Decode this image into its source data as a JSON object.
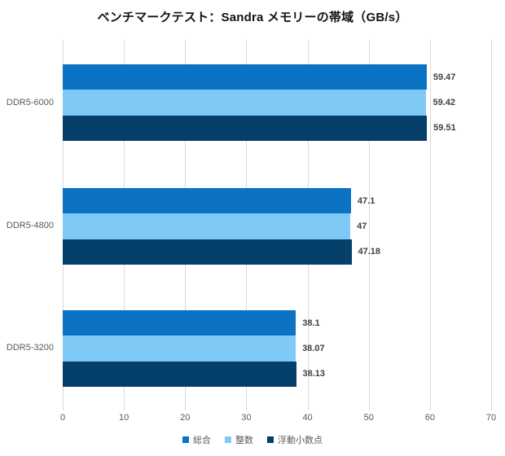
{
  "title": "ベンチマークテスト：Sandra メモリーの帯域（GB/s）",
  "chart_data": {
    "type": "bar",
    "orientation": "horizontal",
    "title": "ベンチマークテスト：Sandra メモリーの帯域（GB/s）",
    "xlabel": "",
    "ylabel": "",
    "xlim": [
      0,
      70
    ],
    "xticks": [
      "0",
      "10",
      "20",
      "30",
      "40",
      "50",
      "60",
      "70"
    ],
    "grid": true,
    "legend_position": "bottom",
    "categories": [
      "DDR5-6000",
      "DDR5-4800",
      "DDR5-3200"
    ],
    "series": [
      {
        "name": "総合",
        "color": "#0b72c4",
        "values": [
          59.47,
          47.1,
          38.1
        ]
      },
      {
        "name": "整数",
        "color": "#7fc9f7",
        "values": [
          59.42,
          47.0,
          38.07
        ]
      },
      {
        "name": "浮動小数点",
        "color": "#05406a",
        "values": [
          59.51,
          47.18,
          38.13
        ]
      }
    ],
    "groups": [
      {
        "category": "DDR5-6000",
        "bars": [
          {
            "series": "総合",
            "value": 59.47,
            "label": "59.47",
            "color": "#0b72c4"
          },
          {
            "series": "整数",
            "value": 59.42,
            "label": "59.42",
            "color": "#7fc9f7"
          },
          {
            "series": "浮動小数点",
            "value": 59.51,
            "label": "59.51",
            "color": "#05406a"
          }
        ]
      },
      {
        "category": "DDR5-4800",
        "bars": [
          {
            "series": "総合",
            "value": 47.1,
            "label": "47.1",
            "color": "#0b72c4"
          },
          {
            "series": "整数",
            "value": 47,
            "label": "47",
            "color": "#7fc9f7"
          },
          {
            "series": "浮動小数点",
            "value": 47.18,
            "label": "47.18",
            "color": "#05406a"
          }
        ]
      },
      {
        "category": "DDR5-3200",
        "bars": [
          {
            "series": "総合",
            "value": 38.1,
            "label": "38.1",
            "color": "#0b72c4"
          },
          {
            "series": "整数",
            "value": 38.07,
            "label": "38.07",
            "color": "#7fc9f7"
          },
          {
            "series": "浮動小数点",
            "value": 38.13,
            "label": "38.13",
            "color": "#05406a"
          }
        ]
      }
    ],
    "legend": [
      {
        "label": "総合",
        "color": "#0b72c4"
      },
      {
        "label": "整数",
        "color": "#7fc9f7"
      },
      {
        "label": "浮動小数点",
        "color": "#05406a"
      }
    ],
    "colors": {
      "gridline": "#d9d9d9",
      "axis_text": "#595959",
      "data_label": "#404040"
    }
  }
}
